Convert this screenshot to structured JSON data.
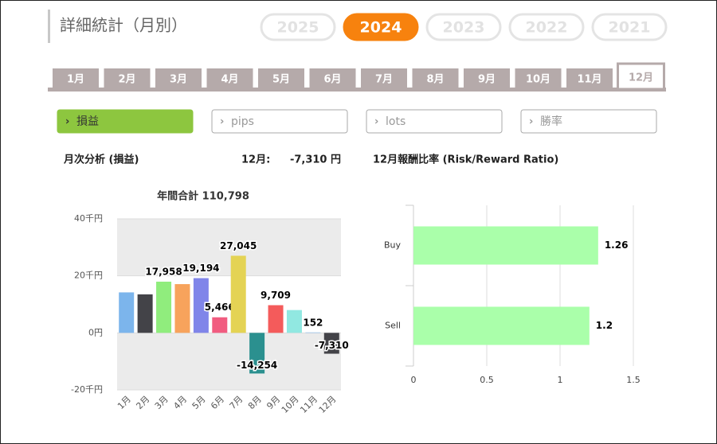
{
  "header": {
    "title": "詳細統計（月別）"
  },
  "years": [
    "2025",
    "2024",
    "2023",
    "2022",
    "2021"
  ],
  "active_year": "2024",
  "months": [
    "1月",
    "2月",
    "3月",
    "4月",
    "5月",
    "6月",
    "7月",
    "8月",
    "9月",
    "10月",
    "11月",
    "12月"
  ],
  "active_month": "12月",
  "metrics": [
    "損益",
    "pips",
    "lots",
    "勝率"
  ],
  "active_metric": "損益",
  "summary": {
    "label": "月次分析 (損益)",
    "month": "12月:",
    "value": "-7,310 円",
    "ratio_title": "12月報酬比率 (Risk/Reward Ratio)"
  },
  "chart_data": [
    {
      "type": "bar",
      "subtitle": "年間合計 110,798",
      "categories": [
        "1月",
        "2月",
        "3月",
        "4月",
        "5月",
        "6月",
        "7月",
        "8月",
        "9月",
        "10月",
        "11月",
        "12月"
      ],
      "values": [
        14200,
        13500,
        17958,
        17100,
        19194,
        5466,
        27045,
        -14254,
        9709,
        8000,
        152,
        -7310
      ],
      "value_labels": [
        null,
        null,
        "17,958",
        null,
        "19,194",
        "5,466",
        "27,045",
        "-14,254",
        "9,709",
        null,
        "152",
        "-7,310"
      ],
      "colors": [
        "#7cb5ec",
        "#434348",
        "#90ed7d",
        "#f7a35c",
        "#8085e9",
        "#f15c80",
        "#e4d354",
        "#2b908f",
        "#f45b5b",
        "#91e8e1",
        "#7cb5ec",
        "#434348"
      ],
      "ylim": [
        -20000,
        40000
      ],
      "yticks": [
        {
          "value": -20000,
          "label": "-20千円"
        },
        {
          "value": 0,
          "label": "0円"
        },
        {
          "value": 20000,
          "label": "20千円"
        },
        {
          "value": 40000,
          "label": "40千円"
        }
      ]
    },
    {
      "type": "hbar",
      "categories": [
        "Buy",
        "Sell"
      ],
      "values": [
        1.26,
        1.2
      ],
      "color": "#aaffaa",
      "xlim": [
        0,
        1.5
      ],
      "xticks": [
        0,
        0.5,
        1,
        1.5
      ],
      "grid": true
    }
  ]
}
